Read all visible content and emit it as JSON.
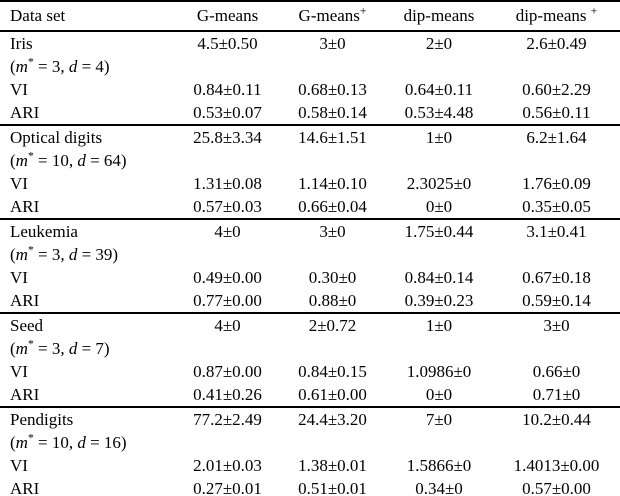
{
  "table": {
    "row_labels": {
      "vi": "VI",
      "ari": "ARI"
    },
    "headers": [
      {
        "segments": [
          {
            "t": "Data set",
            "s": "n"
          }
        ]
      },
      {
        "segments": [
          {
            "t": "G-means",
            "s": "n"
          }
        ]
      },
      {
        "segments": [
          {
            "t": "G-means",
            "s": "n"
          },
          {
            "t": "+",
            "s": "sup"
          }
        ]
      },
      {
        "segments": [
          {
            "t": "dip-means",
            "s": "n"
          }
        ]
      },
      {
        "segments": [
          {
            "t": "dip-means ",
            "s": "n"
          },
          {
            "t": "+",
            "s": "sup"
          }
        ]
      }
    ],
    "groups": [
      {
        "name": "Iris",
        "params_segments": [
          {
            "t": "(",
            "s": "n"
          },
          {
            "t": "m",
            "s": "i"
          },
          {
            "t": "*",
            "s": "sup"
          },
          {
            "t": " = 3, ",
            "s": "n"
          },
          {
            "t": "d",
            "s": "i"
          },
          {
            "t": " = 4)",
            "s": "n"
          }
        ],
        "name_values": [
          "4.5±0.50",
          "3±0",
          "2±0",
          "2.6±0.49"
        ],
        "vi_values": [
          "0.84±0.11",
          "0.68±0.13",
          "0.64±0.11",
          "0.60±2.29"
        ],
        "ari_values": [
          "0.53±0.07",
          "0.58±0.14",
          "0.53±4.48",
          "0.56±0.11"
        ]
      },
      {
        "name": "Optical digits",
        "params_segments": [
          {
            "t": "(",
            "s": "n"
          },
          {
            "t": "m",
            "s": "i"
          },
          {
            "t": "*",
            "s": "sup"
          },
          {
            "t": " = 10, ",
            "s": "n"
          },
          {
            "t": "d",
            "s": "i"
          },
          {
            "t": " = 64)",
            "s": "n"
          }
        ],
        "name_values": [
          "25.8±3.34",
          "14.6±1.51",
          "1±0",
          "6.2±1.64"
        ],
        "vi_values": [
          "1.31±0.08",
          "1.14±0.10",
          "2.3025±0",
          "1.76±0.09"
        ],
        "ari_values": [
          "0.57±0.03",
          "0.66±0.04",
          "0±0",
          "0.35±0.05"
        ]
      },
      {
        "name": "Leukemia",
        "params_segments": [
          {
            "t": "(",
            "s": "n"
          },
          {
            "t": "m",
            "s": "i"
          },
          {
            "t": "*",
            "s": "sup"
          },
          {
            "t": " = 3, ",
            "s": "n"
          },
          {
            "t": "d",
            "s": "i"
          },
          {
            "t": " = 39)",
            "s": "n"
          }
        ],
        "name_values": [
          "4±0",
          "3±0",
          "1.75±0.44",
          "3.1±0.41"
        ],
        "vi_values": [
          "0.49±0.00",
          "0.30±0",
          "0.84±0.14",
          "0.67±0.18"
        ],
        "ari_values": [
          "0.77±0.00",
          "0.88±0",
          "0.39±0.23",
          "0.59±0.14"
        ]
      },
      {
        "name": "Seed",
        "params_segments": [
          {
            "t": "(",
            "s": "n"
          },
          {
            "t": "m",
            "s": "i"
          },
          {
            "t": "*",
            "s": "sup"
          },
          {
            "t": " = 3, ",
            "s": "n"
          },
          {
            "t": "d",
            "s": "i"
          },
          {
            "t": " = 7)",
            "s": "n"
          }
        ],
        "name_values": [
          "4±0",
          "2±0.72",
          "1±0",
          "3±0"
        ],
        "vi_values": [
          "0.87±0.00",
          "0.84±0.15",
          "1.0986±0",
          "0.66±0"
        ],
        "ari_values": [
          "0.41±0.26",
          "0.61±0.00",
          "0±0",
          "0.71±0"
        ]
      },
      {
        "name": "Pendigits",
        "params_segments": [
          {
            "t": "(",
            "s": "n"
          },
          {
            "t": "m",
            "s": "i"
          },
          {
            "t": "*",
            "s": "sup"
          },
          {
            "t": " = 10, ",
            "s": "n"
          },
          {
            "t": "d",
            "s": "i"
          },
          {
            "t": " = 16)",
            "s": "n"
          }
        ],
        "name_values": [
          "77.2±2.49",
          "24.4±3.20",
          "7±0",
          "10.2±0.44"
        ],
        "vi_values": [
          "2.01±0.03",
          "1.38±0.01",
          "1.5866±0",
          "1.4013±0.00"
        ],
        "ari_values": [
          "0.27±0.01",
          "0.51±0.01",
          "0.34±0",
          "0.57±0.00"
        ]
      }
    ]
  }
}
